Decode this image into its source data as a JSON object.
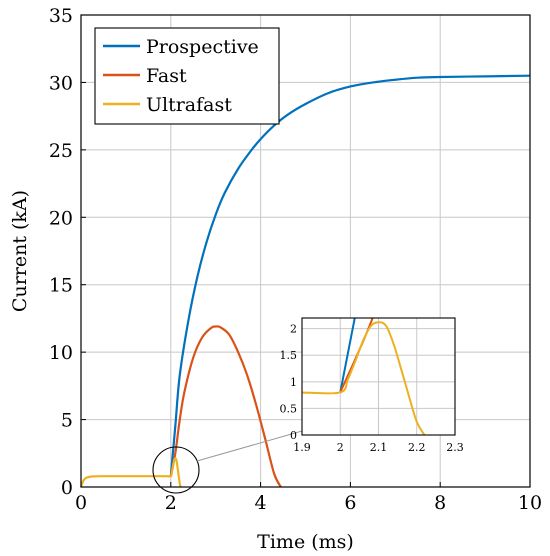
{
  "chart_data": {
    "type": "line",
    "xlabel": "Time (ms)",
    "ylabel": "Current (kA)",
    "xlim": [
      0,
      10
    ],
    "ylim": [
      0,
      35
    ],
    "x_ticks": [
      "0",
      "2",
      "4",
      "6",
      "8",
      "10"
    ],
    "y_ticks": [
      "0",
      "5",
      "10",
      "15",
      "20",
      "25",
      "30",
      "35"
    ],
    "grid": true,
    "legend_position": "top-left",
    "series": [
      {
        "name": "Prospective",
        "color": "#0072BD",
        "x": [
          2.0,
          2.1,
          2.2,
          2.4,
          2.6,
          2.8,
          3.0,
          3.2,
          3.5,
          3.8,
          4.0,
          4.3,
          4.6,
          5.0,
          5.5,
          6.0,
          6.5,
          7.0,
          7.5,
          8.0,
          9.0,
          10.0
        ],
        "y": [
          0.8,
          4.5,
          8.3,
          12.5,
          15.7,
          18.2,
          20.2,
          21.8,
          23.6,
          25.0,
          25.8,
          26.8,
          27.6,
          28.4,
          29.2,
          29.7,
          30.0,
          30.2,
          30.35,
          30.4,
          30.45,
          30.5
        ]
      },
      {
        "name": "Fast",
        "color": "#D95319",
        "x": [
          2.0,
          2.1,
          2.2,
          2.3,
          2.5,
          2.7,
          2.9,
          3.0,
          3.1,
          3.3,
          3.5,
          3.7,
          3.9,
          4.1,
          4.3,
          4.45
        ],
        "y": [
          0.8,
          2.5,
          5.0,
          7.0,
          9.6,
          11.1,
          11.8,
          11.9,
          11.85,
          11.3,
          10.0,
          8.3,
          6.1,
          3.6,
          1.0,
          0.0
        ]
      },
      {
        "name": "Ultrafast",
        "color": "#EDB120",
        "x": [
          0.0,
          0.05,
          0.1,
          0.15,
          0.2,
          0.3,
          0.5,
          1.0,
          1.5,
          1.9,
          2.0,
          2.02,
          2.04,
          2.06,
          2.08,
          2.1,
          2.12,
          2.14,
          2.16,
          2.18,
          2.2,
          2.22
        ],
        "y": [
          0.0,
          0.45,
          0.65,
          0.72,
          0.76,
          0.79,
          0.8,
          0.8,
          0.8,
          0.8,
          0.8,
          1.05,
          1.4,
          1.78,
          2.05,
          2.12,
          2.05,
          1.7,
          1.22,
          0.72,
          0.25,
          0.0
        ]
      }
    ],
    "inset": {
      "xlim": [
        1.9,
        2.3
      ],
      "ylim": [
        0,
        2.2
      ],
      "x_ticks": [
        "1.9",
        "2",
        "2.1",
        "2.2",
        "2.3"
      ],
      "y_ticks": [
        "0",
        "0.5",
        "1",
        "1.5",
        "2"
      ],
      "grid": true
    }
  }
}
